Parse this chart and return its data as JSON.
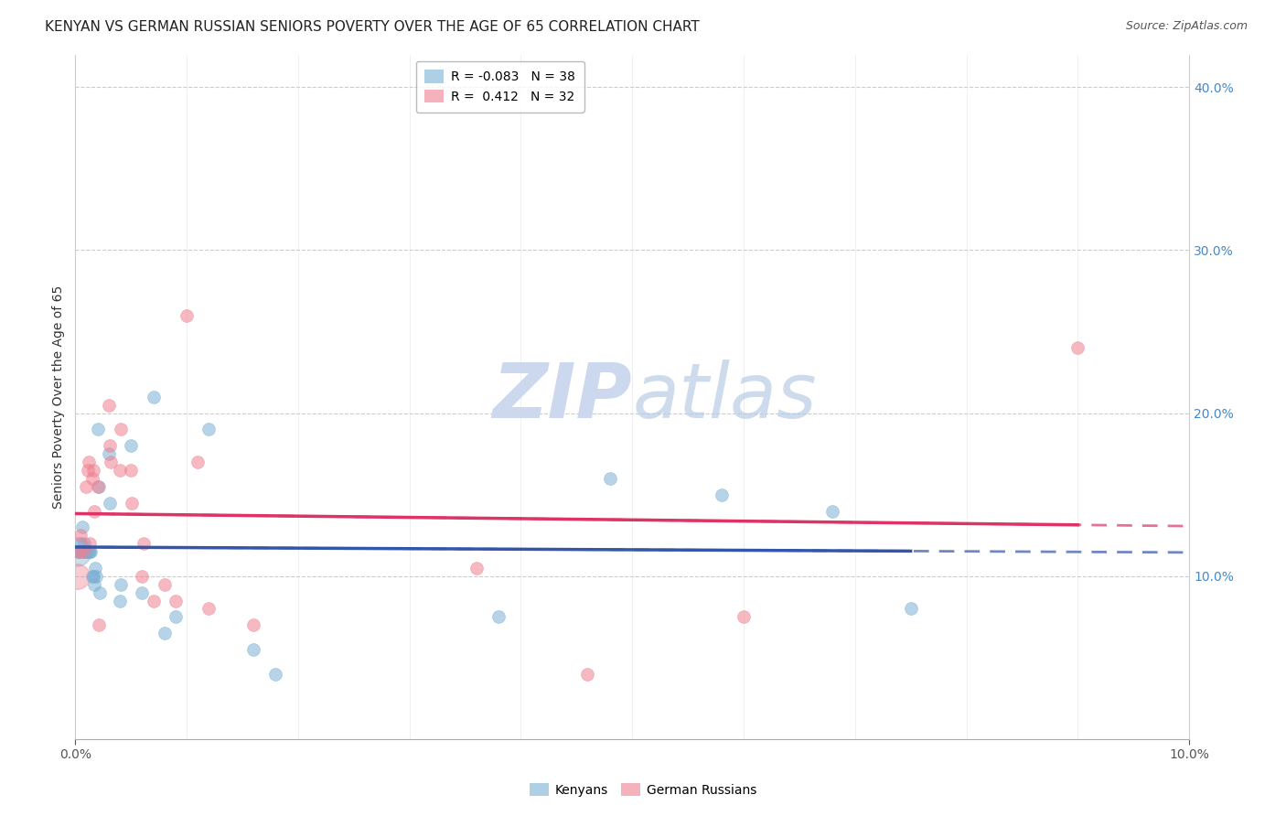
{
  "title": "KENYAN VS GERMAN RUSSIAN SENIORS POVERTY OVER THE AGE OF 65 CORRELATION CHART",
  "source": "Source: ZipAtlas.com",
  "ylabel": "Seniors Poverty Over the Age of 65",
  "x_min": 0.0,
  "x_max": 0.1,
  "y_min": 0.0,
  "y_max": 0.42,
  "y_ticks": [
    0.1,
    0.2,
    0.3,
    0.4
  ],
  "y_tick_labels": [
    "10.0%",
    "20.0%",
    "30.0%",
    "40.0%"
  ],
  "x_tick_labels_show": [
    "0.0%",
    "10.0%"
  ],
  "kenyan_color": "#7bafd4",
  "german_russian_color": "#f08090",
  "kenyan_line_color": "#3355aa",
  "german_russian_line_color": "#dd3366",
  "background_color": "#ffffff",
  "watermark_color": "#ccd8ee",
  "kenyan_x": [
    0.0002,
    0.0003,
    0.0004,
    0.0005,
    0.0006,
    0.0007,
    0.0008,
    0.0009,
    0.001,
    0.0011,
    0.0012,
    0.0013,
    0.0014,
    0.0015,
    0.0016,
    0.0017,
    0.0018,
    0.0019,
    0.002,
    0.0021,
    0.0022,
    0.003,
    0.0031,
    0.004,
    0.0041,
    0.005,
    0.006,
    0.007,
    0.008,
    0.009,
    0.012,
    0.016,
    0.018,
    0.038,
    0.048,
    0.058,
    0.068,
    0.075
  ],
  "kenyan_y": [
    0.115,
    0.115,
    0.115,
    0.12,
    0.13,
    0.115,
    0.12,
    0.115,
    0.115,
    0.115,
    0.115,
    0.115,
    0.115,
    0.1,
    0.1,
    0.095,
    0.105,
    0.1,
    0.19,
    0.155,
    0.09,
    0.175,
    0.145,
    0.085,
    0.095,
    0.18,
    0.09,
    0.21,
    0.065,
    0.075,
    0.19,
    0.055,
    0.04,
    0.075,
    0.16,
    0.15,
    0.14,
    0.08
  ],
  "german_russian_x": [
    0.0003,
    0.0005,
    0.0007,
    0.001,
    0.0011,
    0.0012,
    0.0013,
    0.0015,
    0.0016,
    0.0017,
    0.002,
    0.0021,
    0.003,
    0.0031,
    0.0032,
    0.004,
    0.0041,
    0.005,
    0.0051,
    0.006,
    0.0061,
    0.007,
    0.008,
    0.009,
    0.01,
    0.011,
    0.012,
    0.016,
    0.036,
    0.046,
    0.06,
    0.09
  ],
  "german_russian_y": [
    0.115,
    0.125,
    0.115,
    0.155,
    0.165,
    0.17,
    0.12,
    0.16,
    0.165,
    0.14,
    0.155,
    0.07,
    0.205,
    0.18,
    0.17,
    0.165,
    0.19,
    0.165,
    0.145,
    0.1,
    0.12,
    0.085,
    0.095,
    0.085,
    0.26,
    0.17,
    0.08,
    0.07,
    0.105,
    0.04,
    0.075,
    0.24
  ],
  "title_fontsize": 11,
  "axis_label_fontsize": 10,
  "tick_fontsize": 10,
  "legend_fontsize": 10,
  "source_fontsize": 9
}
